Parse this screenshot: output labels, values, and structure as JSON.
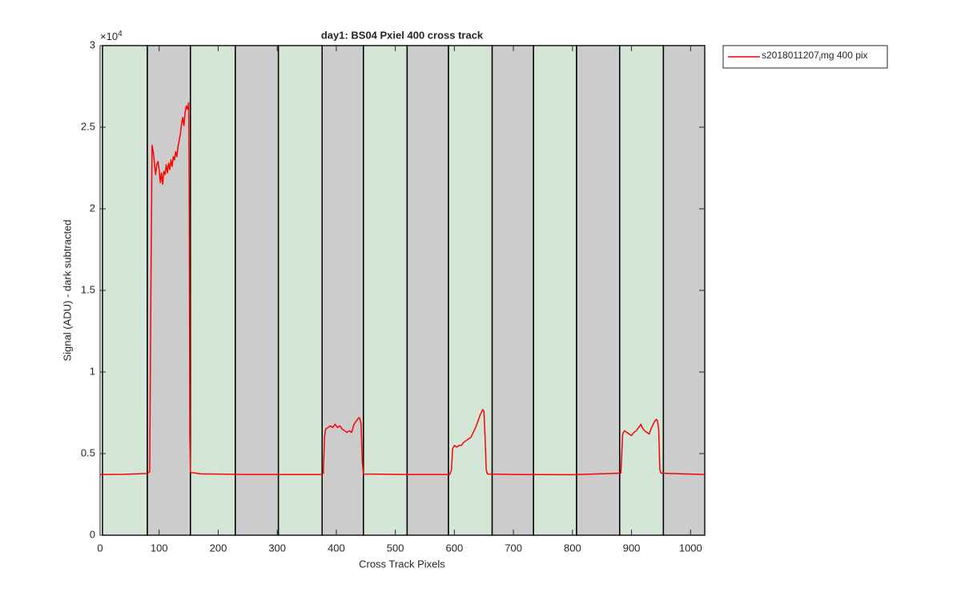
{
  "chart_data": {
    "type": "line",
    "title": "day1: BS04  Pxiel 400 cross track",
    "x_label": "Cross Track Pixels",
    "y_label": "Signal (ADU) - dark subtracted",
    "y_exponent": {
      "base": "×10",
      "power": "4"
    },
    "xlim": [
      0,
      1024
    ],
    "ylim": [
      0,
      30000
    ],
    "xticks": [
      0,
      100,
      200,
      300,
      400,
      500,
      600,
      700,
      800,
      900,
      1000
    ],
    "yticks": [
      0,
      {
        "value": 5000,
        "label": "0.5"
      },
      {
        "value": 10000,
        "label": "1"
      },
      {
        "value": 15000,
        "label": "1.5"
      },
      {
        "value": 20000,
        "label": "2"
      },
      {
        "value": 25000,
        "label": "2.5"
      },
      {
        "value": 30000,
        "label": "3"
      }
    ],
    "legend_position": "outside-top-right",
    "bands": {
      "edges": [
        4,
        80,
        153,
        229,
        302,
        376,
        446,
        520,
        590,
        664,
        734,
        807,
        880,
        954,
        1024
      ],
      "colors": [
        "#d4e7d7",
        "#cccccc"
      ]
    },
    "x": [
      0,
      40,
      80,
      84,
      86,
      88,
      90,
      92,
      94,
      96,
      98,
      100,
      102,
      104,
      106,
      108,
      110,
      112,
      114,
      116,
      118,
      120,
      122,
      124,
      126,
      128,
      130,
      132,
      134,
      136,
      138,
      140,
      142,
      144,
      146,
      148,
      150,
      151,
      152,
      153,
      170,
      250,
      376,
      378,
      380,
      382,
      386,
      390,
      394,
      398,
      402,
      406,
      410,
      414,
      418,
      422,
      426,
      430,
      434,
      438,
      440,
      442,
      444,
      446,
      520,
      592,
      595,
      597,
      600,
      604,
      608,
      612,
      616,
      620,
      624,
      628,
      632,
      636,
      640,
      644,
      648,
      650,
      652,
      654,
      656,
      700,
      800,
      882,
      885,
      888,
      892,
      896,
      900,
      904,
      908,
      912,
      916,
      918,
      922,
      926,
      930,
      934,
      938,
      942,
      944,
      946,
      948,
      950,
      1024
    ],
    "series": [
      {
        "name": "s2018011207_img 400 pix",
        "color": "#ff0000",
        "values": [
          3720,
          3730,
          3780,
          3900,
          15000,
          23900,
          23500,
          22800,
          22100,
          22700,
          22900,
          22400,
          21600,
          22200,
          21500,
          22300,
          22100,
          22700,
          22200,
          22800,
          22400,
          23000,
          22600,
          23200,
          23000,
          23500,
          23200,
          23800,
          24200,
          24600,
          25200,
          25600,
          25100,
          25900,
          26300,
          26100,
          26500,
          20000,
          6000,
          3850,
          3760,
          3720,
          3720,
          3800,
          6000,
          6500,
          6600,
          6700,
          6600,
          6800,
          6600,
          6700,
          6500,
          6400,
          6300,
          6400,
          6300,
          6800,
          7000,
          7200,
          7150,
          6800,
          4500,
          3750,
          3720,
          3720,
          4000,
          5300,
          5500,
          5400,
          5500,
          5500,
          5700,
          5800,
          5900,
          6000,
          6300,
          6600,
          7000,
          7400,
          7700,
          7600,
          6000,
          4000,
          3750,
          3720,
          3710,
          3800,
          6200,
          6400,
          6300,
          6200,
          6100,
          6300,
          6400,
          6600,
          6800,
          6600,
          6400,
          6300,
          6200,
          6600,
          6900,
          7100,
          7000,
          6500,
          4000,
          3800,
          3720
        ]
      }
    ]
  }
}
